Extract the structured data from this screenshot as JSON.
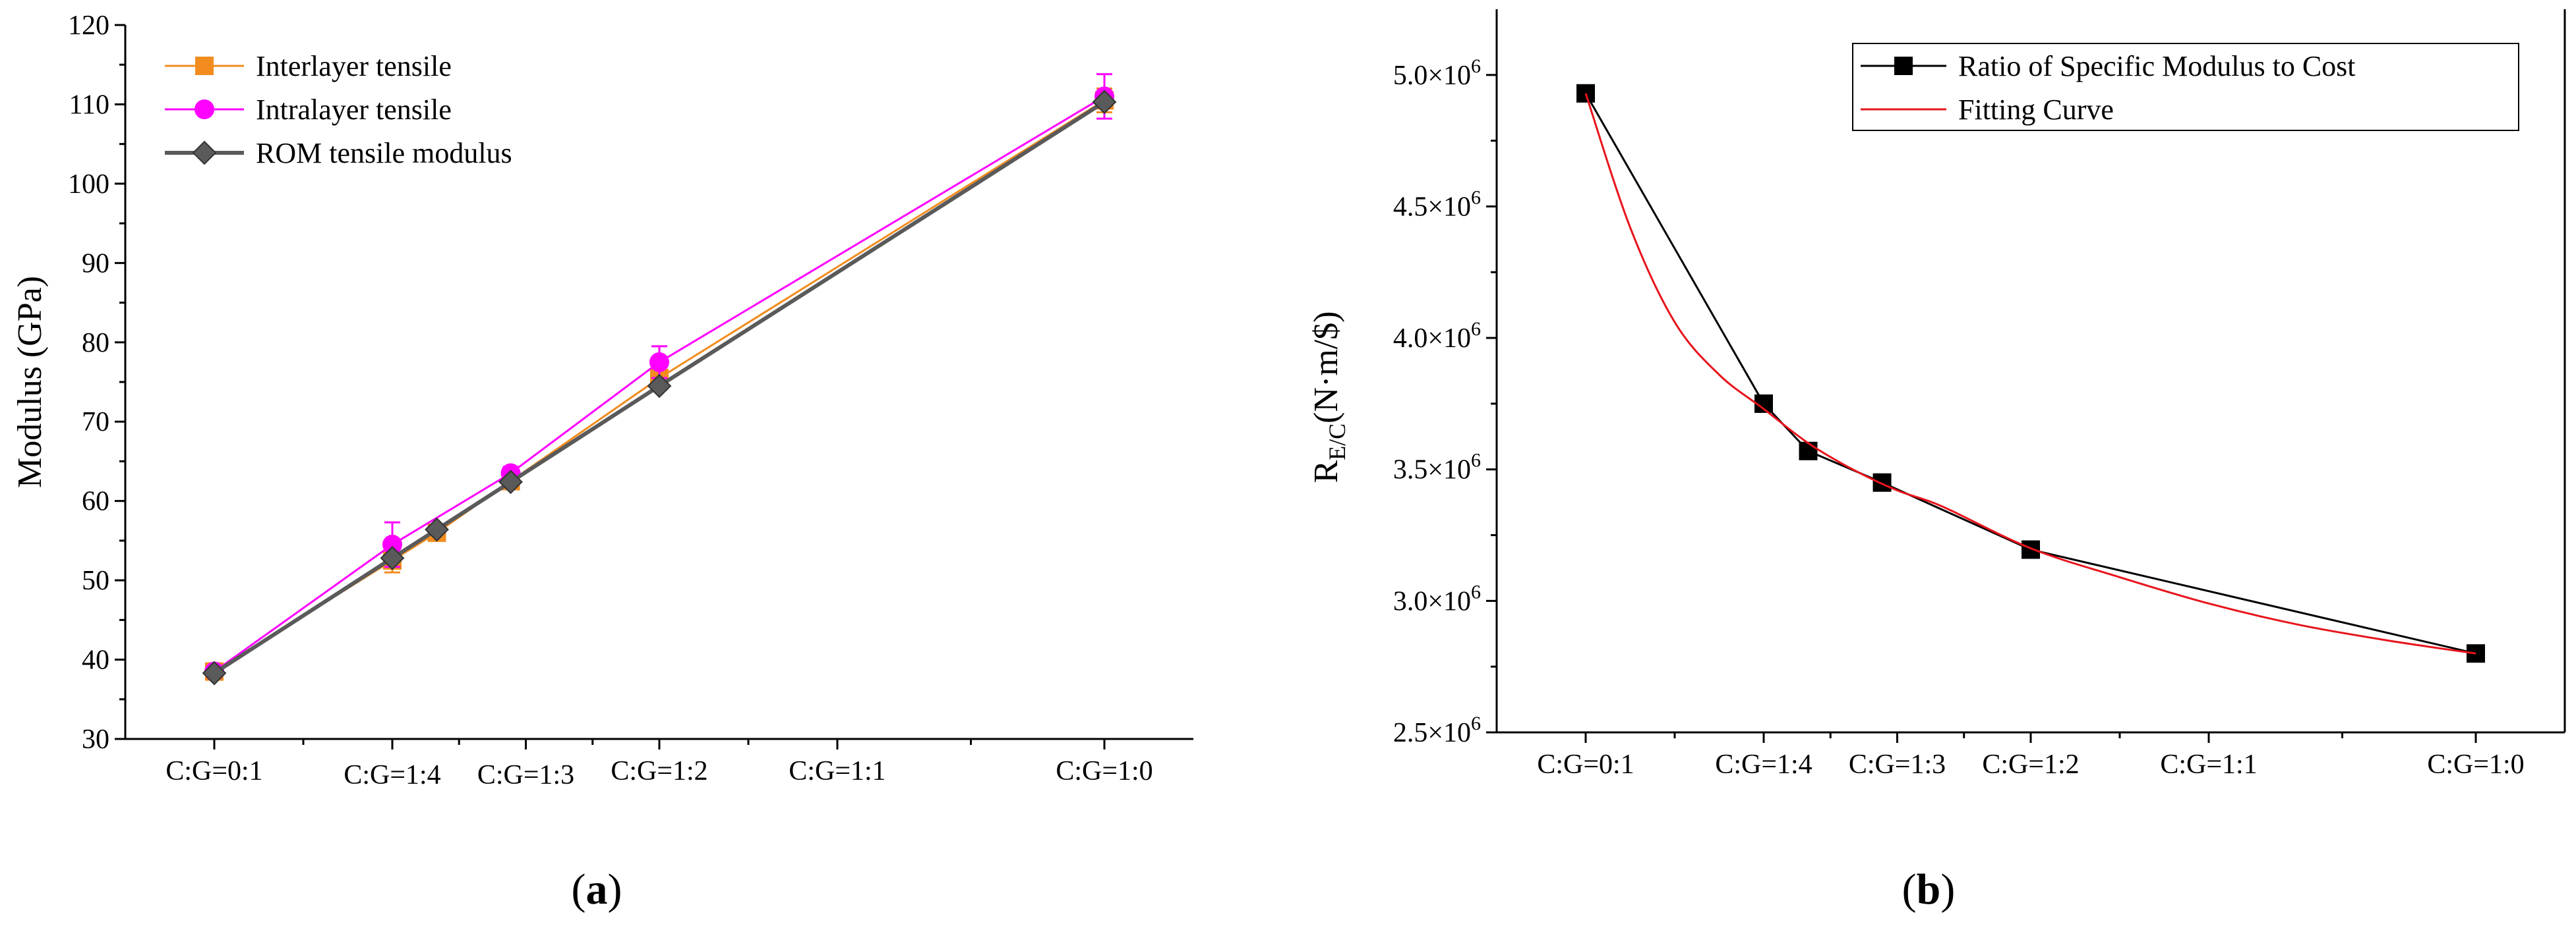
{
  "chart_data": [
    {
      "type": "line",
      "panel_label": "a",
      "ylabel": "Modulus (GPa)",
      "xlabel": "",
      "ylim": [
        30,
        120
      ],
      "yticks": [
        30,
        40,
        50,
        60,
        70,
        80,
        90,
        100,
        110,
        120
      ],
      "xlim": [
        -0.1,
        1.1
      ],
      "xticks": [
        {
          "x": 0.0,
          "label": "C:G=0:1"
        },
        {
          "x": 0.2,
          "label": "C:G=1:4"
        },
        {
          "x": 0.35,
          "label": "C:G=1:3"
        },
        {
          "x": 0.5,
          "label": "C:G=1:2"
        },
        {
          "x": 0.7,
          "label": "C:G=1:1"
        },
        {
          "x": 1.0,
          "label": "C:G=1:0"
        }
      ],
      "legend_position": "top-left",
      "series": [
        {
          "name": "Interlayer tensile",
          "color": "#f28c1e",
          "marker": "square",
          "x": [
            0.0,
            0.2,
            0.25,
            0.333,
            0.5,
            1.0
          ],
          "values": [
            38.5,
            52.5,
            56,
            62.5,
            75.5,
            110.5
          ],
          "errors": [
            0.5,
            1.5,
            1.0,
            1.0,
            1.5,
            1.5
          ]
        },
        {
          "name": "Intralayer tensile",
          "color": "#ff00ff",
          "marker": "circle",
          "x": [
            0.0,
            0.2,
            0.333,
            0.5,
            1.0
          ],
          "values": [
            38.5,
            54.5,
            63.5,
            77.5,
            111
          ],
          "errors": [
            0.5,
            2.8,
            0.8,
            2.0,
            2.8
          ]
        },
        {
          "name": "ROM tensile modulus",
          "color": "#5a5a5a",
          "marker": "diamond",
          "x": [
            0.0,
            0.2,
            0.25,
            0.333,
            0.5,
            1.0
          ],
          "values": [
            38.3,
            52.8,
            56.4,
            62.4,
            74.5,
            110.3
          ],
          "errors": []
        }
      ]
    },
    {
      "type": "line",
      "panel_label": "b",
      "ylabel": "R",
      "ylabel_subscript": "E/C",
      "ylabel_unit": "(N·m/$)",
      "xlabel": "",
      "ylim": [
        2500000,
        5250000
      ],
      "yticks": [
        {
          "v": 2500000,
          "label": "2.5×10",
          "sup": "6"
        },
        {
          "v": 3000000,
          "label": "3.0×10",
          "sup": "6"
        },
        {
          "v": 3500000,
          "label": "3.5×10",
          "sup": "6"
        },
        {
          "v": 4000000,
          "label": "4.0×10",
          "sup": "6"
        },
        {
          "v": 4500000,
          "label": "4.5×10",
          "sup": "6"
        },
        {
          "v": 5000000,
          "label": "5.0×10",
          "sup": "6"
        }
      ],
      "xlim": [
        -0.1,
        1.1
      ],
      "xticks": [
        {
          "x": 0.0,
          "label": "C:G=0:1"
        },
        {
          "x": 0.2,
          "label": "C:G=1:4"
        },
        {
          "x": 0.35,
          "label": "C:G=1:3"
        },
        {
          "x": 0.5,
          "label": "C:G=1:2"
        },
        {
          "x": 0.7,
          "label": "C:G=1:1"
        },
        {
          "x": 1.0,
          "label": "C:G=1:0"
        }
      ],
      "legend_position": "top-right",
      "series": [
        {
          "name": "Ratio of Specific Modulus to Cost",
          "color": "#000000",
          "marker": "square",
          "x": [
            0.0,
            0.2,
            0.25,
            0.333,
            0.5,
            1.0
          ],
          "values": [
            4930000,
            3750000,
            3570000,
            3450000,
            3195000,
            2800000
          ]
        },
        {
          "name": "Fitting Curve",
          "color": "#e8141c",
          "marker": "none",
          "x": [
            0.0,
            0.05,
            0.1,
            0.15,
            0.2,
            0.25,
            0.3,
            0.35,
            0.4,
            0.5,
            0.6,
            0.7,
            0.8,
            0.9,
            1.0
          ],
          "values": [
            4930000,
            4420000,
            4060000,
            3860000,
            3730000,
            3600000,
            3500000,
            3420000,
            3360000,
            3200000,
            3090000,
            2990000,
            2910000,
            2850000,
            2800000
          ]
        }
      ]
    }
  ]
}
